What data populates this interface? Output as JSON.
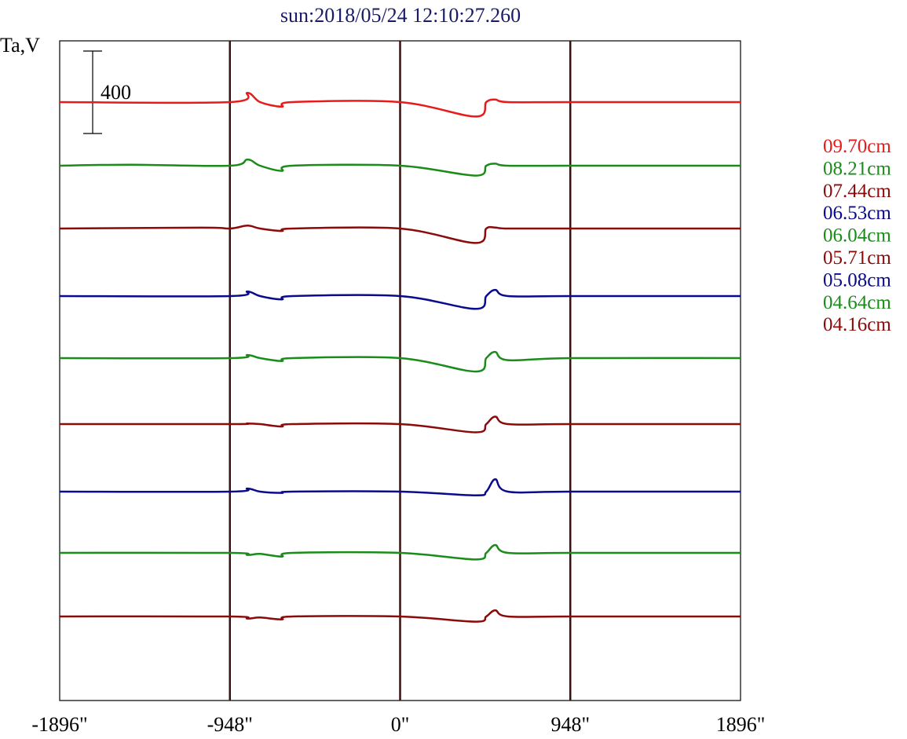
{
  "chart_data": {
    "type": "line",
    "title": "sun:2018/05/24 12:10:27.260",
    "ylabel": "Ta,V",
    "scale_bar_label": "400",
    "x_ticks": [
      {
        "value": -1896,
        "label": "-1896\""
      },
      {
        "value": -948,
        "label": "-948\""
      },
      {
        "value": 0,
        "label": "0\""
      },
      {
        "value": 948,
        "label": "948\""
      },
      {
        "value": 1896,
        "label": "1896\""
      }
    ],
    "xlim": [
      -1896,
      1896
    ],
    "vertical_lines": [
      -948,
      0,
      948
    ],
    "legend_position": "right",
    "series": [
      {
        "name": "09.70cm",
        "color": "#e81a1a",
        "baseline": 0,
        "points": [
          [
            -1896,
            0
          ],
          [
            -948,
            0
          ],
          [
            -850,
            45
          ],
          [
            -780,
            0
          ],
          [
            -660,
            -22
          ],
          [
            -600,
            0
          ],
          [
            0,
            0
          ],
          [
            420,
            -70
          ],
          [
            480,
            0
          ],
          [
            530,
            12
          ],
          [
            600,
            0
          ],
          [
            948,
            0
          ],
          [
            1896,
            0
          ]
        ]
      },
      {
        "name": "08.21cm",
        "color": "#198c19",
        "baseline": 0,
        "points": [
          [
            -1896,
            0
          ],
          [
            -1500,
            5
          ],
          [
            -948,
            0
          ],
          [
            -850,
            30
          ],
          [
            -780,
            0
          ],
          [
            -660,
            -25
          ],
          [
            -600,
            0
          ],
          [
            0,
            0
          ],
          [
            420,
            -48
          ],
          [
            480,
            0
          ],
          [
            530,
            10
          ],
          [
            600,
            0
          ],
          [
            948,
            0
          ],
          [
            1896,
            0
          ]
        ]
      },
      {
        "name": "07.44cm",
        "color": "#8b0a0a",
        "baseline": 0,
        "points": [
          [
            -1896,
            0
          ],
          [
            -1100,
            4
          ],
          [
            -948,
            0
          ],
          [
            -850,
            14
          ],
          [
            -780,
            0
          ],
          [
            -660,
            -12
          ],
          [
            -600,
            0
          ],
          [
            0,
            0
          ],
          [
            420,
            -70
          ],
          [
            480,
            0
          ],
          [
            530,
            5
          ],
          [
            600,
            0
          ],
          [
            948,
            0
          ],
          [
            1896,
            0
          ]
        ]
      },
      {
        "name": "06.53cm",
        "color": "#0a0a8c",
        "baseline": 0,
        "points": [
          [
            -1896,
            0
          ],
          [
            -948,
            0
          ],
          [
            -850,
            22
          ],
          [
            -780,
            0
          ],
          [
            -660,
            -16
          ],
          [
            -600,
            0
          ],
          [
            0,
            0
          ],
          [
            420,
            -62
          ],
          [
            480,
            0
          ],
          [
            530,
            30
          ],
          [
            600,
            0
          ],
          [
            948,
            0
          ],
          [
            1896,
            0
          ]
        ]
      },
      {
        "name": "06.04cm",
        "color": "#198c19",
        "baseline": 0,
        "points": [
          [
            -1896,
            0
          ],
          [
            -948,
            0
          ],
          [
            -850,
            15
          ],
          [
            -780,
            0
          ],
          [
            -660,
            -14
          ],
          [
            -600,
            0
          ],
          [
            0,
            0
          ],
          [
            420,
            -65
          ],
          [
            480,
            0
          ],
          [
            530,
            30
          ],
          [
            600,
            -10
          ],
          [
            948,
            0
          ],
          [
            1896,
            0
          ]
        ]
      },
      {
        "name": "05.71cm",
        "color": "#8b0a0a",
        "baseline": 0,
        "points": [
          [
            -1896,
            0
          ],
          [
            -948,
            0
          ],
          [
            -850,
            3
          ],
          [
            -780,
            0
          ],
          [
            -660,
            -12
          ],
          [
            -600,
            0
          ],
          [
            0,
            0
          ],
          [
            420,
            -40
          ],
          [
            480,
            0
          ],
          [
            530,
            36
          ],
          [
            600,
            0
          ],
          [
            948,
            0
          ],
          [
            1896,
            0
          ]
        ]
      },
      {
        "name": "05.08cm",
        "color": "#0a0a8c",
        "baseline": 0,
        "points": [
          [
            -1896,
            0
          ],
          [
            -948,
            0
          ],
          [
            -850,
            15
          ],
          [
            -780,
            0
          ],
          [
            -660,
            -6
          ],
          [
            -600,
            0
          ],
          [
            0,
            0
          ],
          [
            420,
            -18
          ],
          [
            480,
            0
          ],
          [
            530,
            60
          ],
          [
            600,
            0
          ],
          [
            948,
            0
          ],
          [
            1896,
            0
          ]
        ]
      },
      {
        "name": "04.64cm",
        "color": "#198c19",
        "baseline": 0,
        "points": [
          [
            -1896,
            0
          ],
          [
            -948,
            0
          ],
          [
            -850,
            -10
          ],
          [
            -780,
            -5
          ],
          [
            -660,
            -18
          ],
          [
            -600,
            0
          ],
          [
            0,
            0
          ],
          [
            420,
            -32
          ],
          [
            480,
            0
          ],
          [
            530,
            38
          ],
          [
            600,
            0
          ],
          [
            948,
            0
          ],
          [
            1896,
            0
          ]
        ]
      },
      {
        "name": "04.16cm",
        "color": "#8b0a0a",
        "baseline": 0,
        "points": [
          [
            -1896,
            0
          ],
          [
            -948,
            0
          ],
          [
            -850,
            -10
          ],
          [
            -780,
            -5
          ],
          [
            -660,
            -14
          ],
          [
            -600,
            0
          ],
          [
            0,
            0
          ],
          [
            420,
            -25
          ],
          [
            480,
            0
          ],
          [
            530,
            30
          ],
          [
            600,
            0
          ],
          [
            948,
            0
          ],
          [
            1896,
            0
          ]
        ]
      }
    ]
  }
}
